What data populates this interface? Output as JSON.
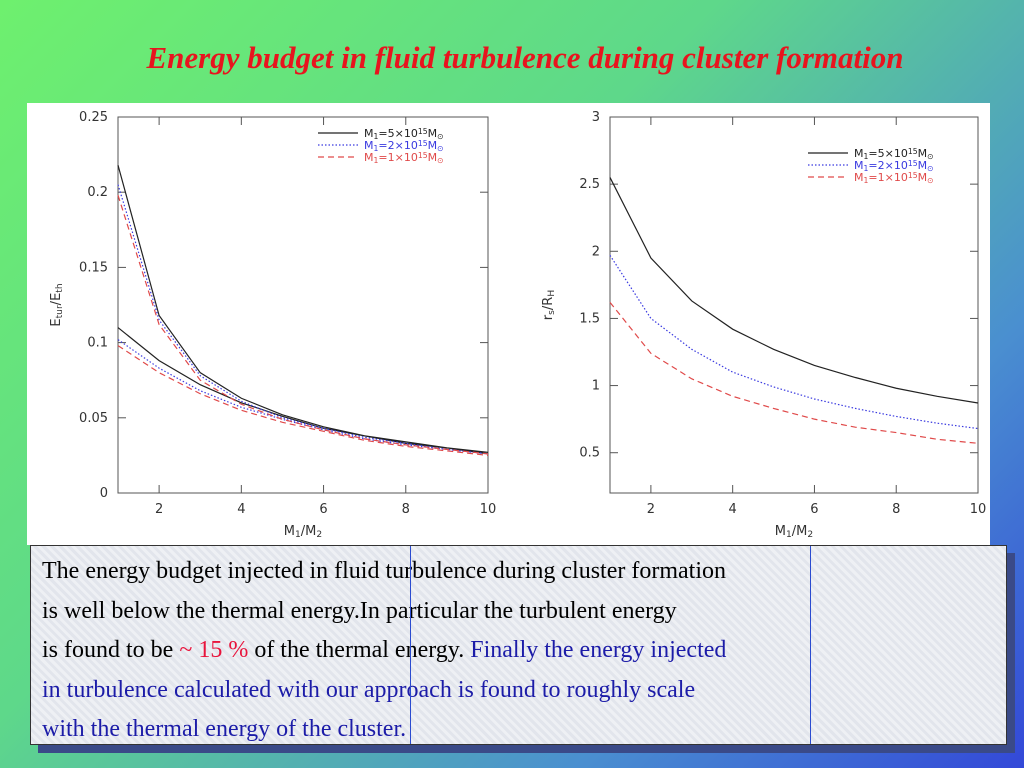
{
  "title": "Energy budget in fluid turbulence during cluster formation",
  "text_box": {
    "lines": [
      [
        {
          "text": "The energy budget injected in fluid turbulence during cluster formation",
          "color": "#000000"
        }
      ],
      [
        {
          "text": "is well below the thermal energy.In particular the turbulent energy",
          "color": "#000000"
        }
      ],
      [
        {
          "text": "is found to be ",
          "color": "#000000"
        },
        {
          "text": "~ 15 %",
          "color": "#e8143c"
        },
        {
          "text": " of the thermal energy. ",
          "color": "#000000"
        },
        {
          "text": "Finally the energy injected",
          "color": "#1c1ca8"
        }
      ],
      [
        {
          "text": "in turbulence calculated with our approach is found to roughly scale",
          "color": "#1c1ca8"
        }
      ],
      [
        {
          "text": "with the thermal energy of the cluster.",
          "color": "#1c1ca8"
        }
      ]
    ]
  },
  "chart_data": [
    {
      "type": "line",
      "xlabel": [
        "M",
        "1",
        "/M",
        "2"
      ],
      "ylabel": [
        "E",
        "tur",
        "/E",
        "th"
      ],
      "xlim": [
        1,
        10
      ],
      "xticks": [
        2,
        4,
        6,
        8,
        10
      ],
      "ylim": [
        0,
        0.25
      ],
      "yticks": [
        0,
        0.05,
        0.1,
        0.15,
        0.2,
        0.25
      ],
      "legend": "upper right",
      "series": [
        {
          "name": [
            "M",
            "1",
            "=5×10",
            "15",
            "M",
            "⊙"
          ],
          "color": "#222222",
          "style": "solid",
          "x": [
            1,
            2,
            3,
            4,
            5,
            6,
            7,
            8,
            9,
            10,
            null,
            1,
            2,
            3,
            4,
            5,
            6,
            7,
            8,
            9,
            10
          ],
          "values": [
            0.218,
            0.118,
            0.08,
            0.063,
            0.052,
            0.044,
            0.038,
            0.034,
            0.03,
            0.027,
            null,
            0.11,
            0.088,
            0.072,
            0.06,
            0.051,
            0.043,
            0.038,
            0.033,
            0.03,
            0.026
          ]
        },
        {
          "name": [
            "M",
            "1",
            "=2×10",
            "15",
            "M",
            "⊙"
          ],
          "color": "#3a3ae0",
          "style": "dotted",
          "x": [
            1,
            2,
            3,
            4,
            5,
            6,
            7,
            8,
            9,
            10,
            null,
            1,
            2,
            3,
            4,
            5,
            6,
            7,
            8,
            9,
            10
          ],
          "values": [
            0.205,
            0.115,
            0.078,
            0.061,
            0.05,
            0.043,
            0.037,
            0.033,
            0.029,
            0.026,
            null,
            0.102,
            0.083,
            0.068,
            0.057,
            0.049,
            0.042,
            0.036,
            0.032,
            0.029,
            0.026
          ]
        },
        {
          "name": [
            "M",
            "1",
            "=1×10",
            "15",
            "M",
            "⊙"
          ],
          "color": "#e04a4a",
          "style": "dashed",
          "x": [
            1,
            2,
            3,
            4,
            5,
            6,
            7,
            8,
            9,
            10,
            null,
            1,
            2,
            3,
            4,
            5,
            6,
            7,
            8,
            9,
            10
          ],
          "values": [
            0.198,
            0.112,
            0.075,
            0.059,
            0.049,
            0.042,
            0.036,
            0.032,
            0.029,
            0.026,
            null,
            0.098,
            0.08,
            0.066,
            0.055,
            0.047,
            0.041,
            0.035,
            0.031,
            0.028,
            0.025
          ]
        }
      ]
    },
    {
      "type": "line",
      "xlabel": [
        "M",
        "1",
        "/M",
        "2"
      ],
      "ylabel": [
        "r",
        "s",
        "/R",
        "H"
      ],
      "xlim": [
        1,
        10
      ],
      "xticks": [
        2,
        4,
        6,
        8,
        10
      ],
      "ylim": [
        0.2,
        3
      ],
      "yticks": [
        0.5,
        1,
        1.5,
        2,
        2.5,
        3
      ],
      "legend": "upper right",
      "series": [
        {
          "name": [
            "M",
            "1",
            "=5×10",
            "15",
            "M",
            "⊙"
          ],
          "color": "#222222",
          "style": "solid",
          "x": [
            1,
            2,
            3,
            4,
            5,
            6,
            7,
            8,
            9,
            10
          ],
          "values": [
            2.55,
            1.95,
            1.63,
            1.42,
            1.27,
            1.15,
            1.06,
            0.98,
            0.92,
            0.87
          ]
        },
        {
          "name": [
            "M",
            "1",
            "=2×10",
            "15",
            "M",
            "⊙"
          ],
          "color": "#3a3ae0",
          "style": "dotted",
          "x": [
            1,
            2,
            3,
            4,
            5,
            6,
            7,
            8,
            9,
            10
          ],
          "values": [
            1.97,
            1.5,
            1.27,
            1.1,
            0.99,
            0.9,
            0.83,
            0.77,
            0.72,
            0.68
          ]
        },
        {
          "name": [
            "M",
            "1",
            "=1×10",
            "15",
            "M",
            "⊙"
          ],
          "color": "#e04a4a",
          "style": "dashed",
          "x": [
            1,
            2,
            3,
            4,
            5,
            6,
            7,
            8,
            9,
            10
          ],
          "values": [
            1.62,
            1.24,
            1.05,
            0.92,
            0.83,
            0.75,
            0.69,
            0.65,
            0.6,
            0.57
          ]
        }
      ]
    }
  ]
}
